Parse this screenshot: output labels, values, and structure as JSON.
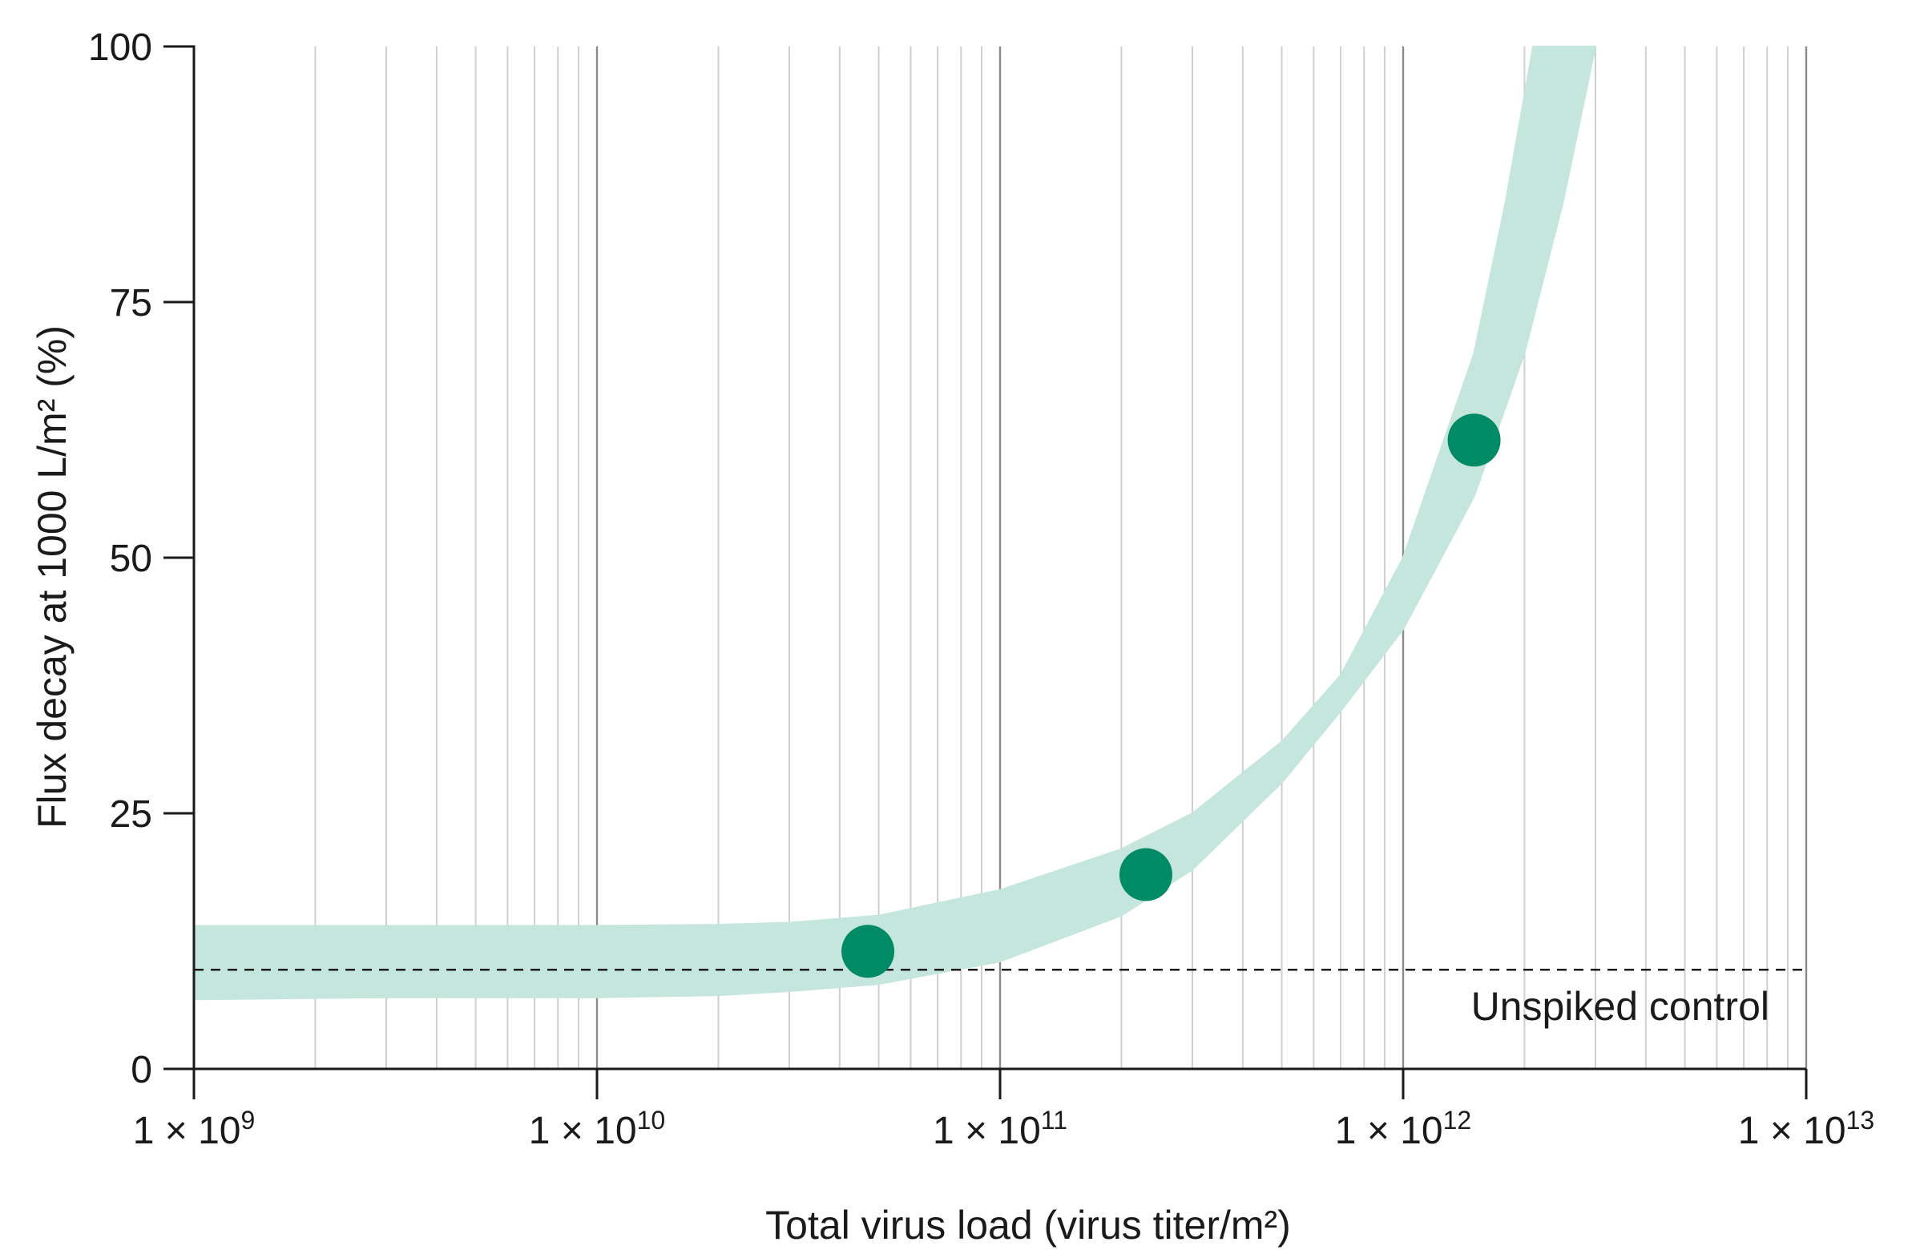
{
  "chart_data": {
    "type": "scatter",
    "xlabel": "Total virus load (virus titer/m²)",
    "ylabel": "Flux decay at 1000 L/m² (%)",
    "x_scale": "log",
    "xlim": [
      1000000000.0,
      10000000000000.0
    ],
    "ylim": [
      0,
      100
    ],
    "x_ticks": [
      {
        "value": 1000000000.0,
        "base": "1 × 10",
        "exp": "9"
      },
      {
        "value": 10000000000.0,
        "base": "1 × 10",
        "exp": "10"
      },
      {
        "value": 100000000000.0,
        "base": "1 × 10",
        "exp": "11"
      },
      {
        "value": 1000000000000.0,
        "base": "1 × 10",
        "exp": "12"
      },
      {
        "value": 10000000000000.0,
        "base": "1 × 10",
        "exp": "13"
      }
    ],
    "y_ticks": [
      0,
      25,
      50,
      75,
      100
    ],
    "grid": "vertical log grid (major at decades, minor at 2–9)",
    "series": [
      {
        "points": [
          {
            "x": 47000000000.0,
            "y": 11.5
          },
          {
            "x": 230000000000.0,
            "y": 19
          },
          {
            "x": 1500000000000.0,
            "y": 61.5
          }
        ],
        "color": "#008a66"
      }
    ],
    "trend_band": {
      "color": "#c4e6dd",
      "lower": [
        [
          1000000000.0,
          6.8
        ],
        [
          3000000000.0,
          7
        ],
        [
          10000000000.0,
          7
        ],
        [
          20000000000.0,
          7.2
        ],
        [
          30000000000.0,
          7.6
        ],
        [
          50000000000.0,
          8.3
        ],
        [
          100000000000.0,
          10.5
        ],
        [
          200000000000.0,
          15
        ],
        [
          300000000000.0,
          19.5
        ],
        [
          500000000000.0,
          28
        ],
        [
          700000000000.0,
          35
        ],
        [
          1000000000000.0,
          43
        ],
        [
          1500000000000.0,
          56
        ],
        [
          2000000000000.0,
          70
        ],
        [
          2500000000000.0,
          85
        ],
        [
          3000000000000.0,
          100
        ]
      ],
      "upper": [
        [
          1000000000.0,
          14
        ],
        [
          3000000000.0,
          14
        ],
        [
          10000000000.0,
          14
        ],
        [
          20000000000.0,
          14.1
        ],
        [
          30000000000.0,
          14.3
        ],
        [
          50000000000.0,
          15
        ],
        [
          100000000000.0,
          17.5
        ],
        [
          200000000000.0,
          21.5
        ],
        [
          300000000000.0,
          25
        ],
        [
          500000000000.0,
          32
        ],
        [
          700000000000.0,
          38.5
        ],
        [
          1000000000000.0,
          50
        ],
        [
          1500000000000.0,
          70
        ],
        [
          1800000000000.0,
          85
        ],
        [
          2100000000000.0,
          100
        ]
      ]
    },
    "reference_line": {
      "y": 9.7,
      "label": "Unspiked control",
      "style": "dashed"
    }
  }
}
